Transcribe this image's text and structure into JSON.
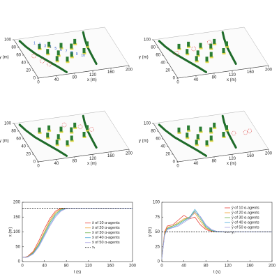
{
  "panels": [
    {
      "xlabel": "x (m)",
      "ylabel": "y (m)",
      "xticks": [
        0,
        40,
        80,
        120,
        160,
        200
      ],
      "yticks": [
        0,
        20,
        40,
        60,
        80,
        100
      ],
      "annotations": [
        "1",
        "2",
        "3",
        "4",
        "5",
        "6",
        "7",
        "8",
        "9",
        "10"
      ]
    },
    {
      "xlabel": "x (m)",
      "ylabel": "y (m)",
      "xticks": [
        0,
        40,
        80,
        120,
        160,
        200
      ],
      "yticks": [
        0,
        20,
        40,
        60,
        80,
        100
      ]
    },
    {
      "xlabel": "x (m)",
      "ylabel": "y (m)",
      "xticks": [
        0,
        40,
        80,
        120,
        160,
        200
      ],
      "yticks": [
        0,
        20,
        40,
        60,
        80,
        100
      ]
    },
    {
      "xlabel": "x (m)",
      "ylabel": "y (m)",
      "xticks": [
        0,
        40,
        80,
        120,
        160,
        200
      ],
      "yticks": [
        0,
        20,
        40,
        60,
        80,
        100
      ]
    }
  ],
  "chart_data": [
    {
      "type": "line",
      "xlabel": "t (s)",
      "ylabel": "x (m)",
      "x": [
        0,
        5,
        10,
        20,
        30,
        40,
        50,
        60,
        70,
        80,
        90,
        100,
        120,
        140,
        160,
        180,
        200
      ],
      "xlim": [
        0,
        200
      ],
      "xticks": [
        0,
        40,
        80,
        120,
        160,
        200
      ],
      "ylim": [
        0,
        200
      ],
      "yticks": [
        0,
        50,
        100,
        150,
        200
      ],
      "legend": "right",
      "series": [
        {
          "name": "x̄ of 10 α-agents",
          "color": "#e8413a",
          "values": [
            15,
            15,
            18,
            35,
            70,
            110,
            145,
            170,
            180,
            180,
            180,
            180,
            180,
            180,
            180,
            180,
            180
          ]
        },
        {
          "name": "x̄ of 20 α-agents",
          "color": "#f0a030",
          "values": [
            15,
            14,
            17,
            32,
            62,
            100,
            138,
            165,
            178,
            180,
            180,
            180,
            180,
            180,
            180,
            180,
            180
          ]
        },
        {
          "name": "x̄ of 30 α-agents",
          "color": "#6ab04c",
          "values": [
            15,
            14,
            16,
            30,
            58,
            95,
            132,
            160,
            176,
            180,
            180,
            180,
            180,
            180,
            180,
            180,
            180
          ]
        },
        {
          "name": "x̄ of 40 α-agents",
          "color": "#4aa8d8",
          "values": [
            15,
            14,
            16,
            28,
            54,
            90,
            126,
            155,
            173,
            180,
            180,
            180,
            180,
            180,
            180,
            180,
            180
          ]
        },
        {
          "name": "x̄ of 50 α-agents",
          "color": "#a8a0e0",
          "values": [
            15,
            14,
            15,
            26,
            50,
            85,
            120,
            150,
            170,
            179,
            180,
            180,
            180,
            180,
            180,
            180,
            180
          ]
        },
        {
          "name": "xᵣ",
          "color": "#000000",
          "dashed": true,
          "values": [
            180,
            180,
            180,
            180,
            180,
            180,
            180,
            180,
            180,
            180,
            180,
            180,
            180,
            180,
            180,
            180,
            180
          ]
        }
      ]
    },
    {
      "type": "line",
      "xlabel": "t (s)",
      "ylabel": "y (m)",
      "x": [
        0,
        5,
        10,
        20,
        30,
        40,
        50,
        60,
        70,
        80,
        90,
        100,
        120,
        140,
        160,
        180,
        200
      ],
      "xlim": [
        0,
        200
      ],
      "xticks": [
        0,
        40,
        80,
        120,
        160,
        200
      ],
      "ylim": [
        0,
        100
      ],
      "yticks": [
        0,
        25,
        50,
        75,
        100
      ],
      "legend": "upper right",
      "series": [
        {
          "name": "ȳ of 10 α-agents",
          "color": "#e8413a",
          "values": [
            5,
            50,
            60,
            62,
            70,
            78,
            72,
            75,
            62,
            54,
            51,
            50,
            50,
            50,
            50,
            50,
            50
          ]
        },
        {
          "name": "ȳ of 20 α-agents",
          "color": "#f0a030",
          "values": [
            5,
            48,
            58,
            60,
            66,
            72,
            74,
            82,
            68,
            56,
            52,
            50,
            50,
            50,
            50,
            50,
            50
          ]
        },
        {
          "name": "ȳ of 30 α-agents",
          "color": "#6ab04c",
          "values": [
            5,
            46,
            56,
            60,
            64,
            70,
            75,
            85,
            72,
            58,
            52,
            50,
            50,
            50,
            50,
            50,
            50
          ]
        },
        {
          "name": "ȳ of 40 α-agents",
          "color": "#4aa8d8",
          "values": [
            5,
            45,
            55,
            58,
            62,
            68,
            74,
            88,
            75,
            60,
            53,
            50,
            50,
            50,
            50,
            50,
            50
          ]
        },
        {
          "name": "ȳ of 50 α-agents",
          "color": "#a8a0e0",
          "values": [
            5,
            44,
            54,
            57,
            60,
            66,
            72,
            84,
            76,
            62,
            54,
            51,
            50,
            50,
            50,
            50,
            50
          ]
        },
        {
          "name": "yᵣ",
          "color": "#000000",
          "dashed": true,
          "values": [
            50,
            50,
            50,
            50,
            50,
            50,
            50,
            50,
            50,
            50,
            50,
            50,
            50,
            50,
            50,
            50,
            50
          ]
        }
      ]
    }
  ]
}
